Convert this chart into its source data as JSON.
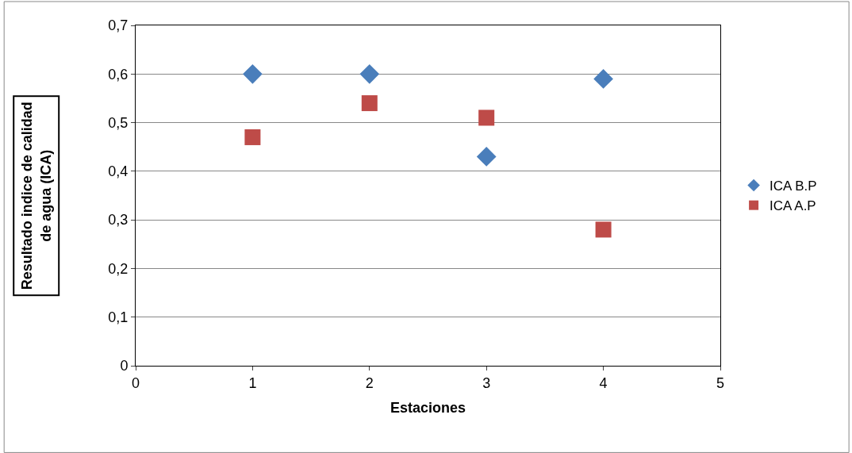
{
  "chart_data": {
    "type": "scatter",
    "xlabel": "Estaciones",
    "ylabel": "Resultado indice de calidad de agua (ICA)",
    "x": [
      1,
      2,
      3,
      4
    ],
    "series": [
      {
        "name": "ICA B.P",
        "color": "#4a7ebb",
        "values": [
          0.6,
          0.6,
          0.43,
          0.59
        ],
        "marker": "diamond"
      },
      {
        "name": "ICA A.P",
        "color": "#be4b48",
        "values": [
          0.47,
          0.54,
          0.51,
          0.28
        ],
        "marker": "square"
      }
    ],
    "xlim": [
      0,
      5
    ],
    "xticks": [
      0,
      1,
      2,
      3,
      4,
      5
    ],
    "ylim": [
      0,
      0.7
    ],
    "yticks": [
      {
        "value": 0,
        "label": "0"
      },
      {
        "value": 0.1,
        "label": "0,1"
      },
      {
        "value": 0.2,
        "label": "0,2"
      },
      {
        "value": 0.3,
        "label": "0,3"
      },
      {
        "value": 0.4,
        "label": "0,4"
      },
      {
        "value": 0.5,
        "label": "0,5"
      },
      {
        "value": 0.6,
        "label": "0,6"
      },
      {
        "value": 0.7,
        "label": "0,7"
      }
    ],
    "grid": "y",
    "legend": "right"
  }
}
